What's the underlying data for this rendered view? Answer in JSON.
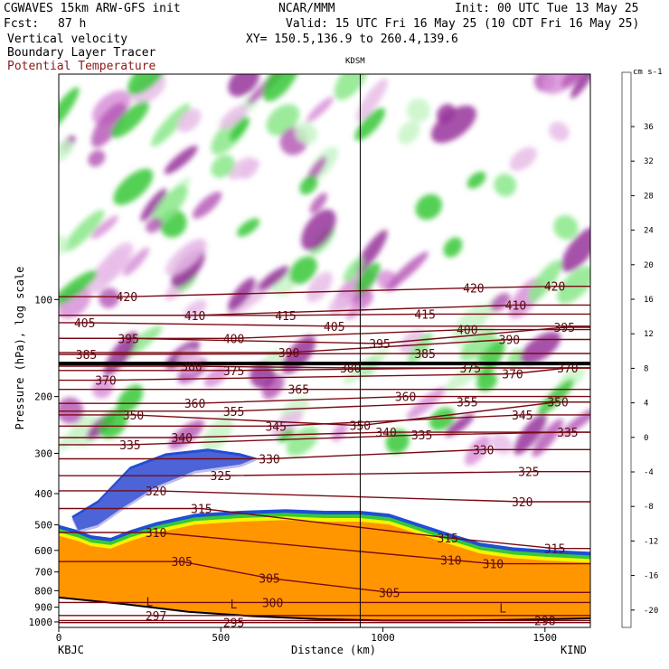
{
  "header": {
    "model": "CGWAVES 15km ARW-GFS init",
    "org": "NCAR/MMM",
    "init": "Init: 00 UTC Tue 13 May 25",
    "fcst_label": "Fcst:",
    "fcst_value": "87 h",
    "valid": "Valid: 15 UTC Fri 16 May 25 (10 CDT Fri 16 May 25)",
    "field1": "Vertical velocity",
    "field2": "Boundary Layer Tracer",
    "field3": "Potential Temperature",
    "xy": "XY= 150.5,136.9 to 260.4,139.6",
    "station_mid": "KDSM",
    "station_left": "KBJC",
    "station_right": "KIND"
  },
  "colors": {
    "theta": "#7a0a14",
    "tracer": "#1f4fd6",
    "title_red": "#8b1a1a"
  },
  "colorbar": {
    "unit": "cm s-1",
    "labels": [
      "36",
      "32",
      "28",
      "24",
      "20",
      "16",
      "12",
      "8",
      "4",
      "0",
      "-4",
      "-8",
      "-12",
      "-16",
      "-20"
    ],
    "colors": [
      "#ff0000",
      "#ff3a00",
      "#ff6a00",
      "#ff9600",
      "#ffb800",
      "#ffde00",
      "#f4f400",
      "#b6ee2a",
      "#5ee05e",
      "#36c836",
      "#8ae88a",
      "#c8f4c8",
      "#ffffff",
      "#ffffff",
      "#e8bde8",
      "#d890d8",
      "#b75cb7",
      "#96329b",
      "#78207e",
      "#6a3aa8",
      "#7a7ad8",
      "#8c8ce8"
    ]
  },
  "chart_data": {
    "type": "contour",
    "title": "Vertical velocity / Boundary Layer Tracer / Potential Temperature",
    "xlabel": "Distance (km)",
    "ylabel": "Pressure (hPa), log scale",
    "xlim": [
      0,
      1640
    ],
    "ylim": [
      1040,
      20
    ],
    "x_ticks": [
      0,
      500,
      1000,
      1500
    ],
    "y_ticks": [
      100,
      200,
      300,
      400,
      500,
      600,
      700,
      800,
      900,
      1000
    ],
    "station_marker_km": 930,
    "theta_labels": [
      {
        "v": "420",
        "x": 210,
        "p": 98
      },
      {
        "v": "420",
        "x": 1280,
        "p": 92
      },
      {
        "v": "420",
        "x": 1530,
        "p": 91
      },
      {
        "v": "410",
        "x": 420,
        "p": 112
      },
      {
        "v": "410",
        "x": 1410,
        "p": 104
      },
      {
        "v": "415",
        "x": 700,
        "p": 112
      },
      {
        "v": "415",
        "x": 1130,
        "p": 111
      },
      {
        "v": "405",
        "x": 80,
        "p": 118
      },
      {
        "v": "405",
        "x": 850,
        "p": 121
      },
      {
        "v": "400",
        "x": 540,
        "p": 132
      },
      {
        "v": "400",
        "x": 1260,
        "p": 124
      },
      {
        "v": "395",
        "x": 215,
        "p": 132
      },
      {
        "v": "395",
        "x": 990,
        "p": 137
      },
      {
        "v": "395",
        "x": 1560,
        "p": 122
      },
      {
        "v": "390",
        "x": 710,
        "p": 146
      },
      {
        "v": "390",
        "x": 1390,
        "p": 133
      },
      {
        "v": "385",
        "x": 85,
        "p": 148
      },
      {
        "v": "385",
        "x": 1130,
        "p": 147
      },
      {
        "v": "380",
        "x": 410,
        "p": 161
      },
      {
        "v": "380",
        "x": 900,
        "p": 163
      },
      {
        "v": "375",
        "x": 540,
        "p": 166
      },
      {
        "v": "375",
        "x": 1270,
        "p": 163
      },
      {
        "v": "370",
        "x": 1570,
        "p": 163
      },
      {
        "v": "370",
        "x": 145,
        "p": 178
      },
      {
        "v": "370",
        "x": 1400,
        "p": 170
      },
      {
        "v": "365",
        "x": 740,
        "p": 190
      },
      {
        "v": "360",
        "x": 420,
        "p": 210
      },
      {
        "v": "360",
        "x": 1070,
        "p": 200
      },
      {
        "v": "355",
        "x": 540,
        "p": 222
      },
      {
        "v": "355",
        "x": 1260,
        "p": 208
      },
      {
        "v": "350",
        "x": 230,
        "p": 228
      },
      {
        "v": "350",
        "x": 930,
        "p": 246
      },
      {
        "v": "350",
        "x": 1540,
        "p": 208
      },
      {
        "v": "345",
        "x": 670,
        "p": 247
      },
      {
        "v": "345",
        "x": 1430,
        "p": 228
      },
      {
        "v": "340",
        "x": 380,
        "p": 268
      },
      {
        "v": "340",
        "x": 1010,
        "p": 258
      },
      {
        "v": "335",
        "x": 220,
        "p": 282
      },
      {
        "v": "335",
        "x": 1120,
        "p": 263
      },
      {
        "v": "335",
        "x": 1570,
        "p": 258
      },
      {
        "v": "330",
        "x": 650,
        "p": 312
      },
      {
        "v": "330",
        "x": 1310,
        "p": 292
      },
      {
        "v": "325",
        "x": 500,
        "p": 352
      },
      {
        "v": "325",
        "x": 1450,
        "p": 342
      },
      {
        "v": "320",
        "x": 300,
        "p": 392
      },
      {
        "v": "320",
        "x": 1430,
        "p": 424
      },
      {
        "v": "315",
        "x": 440,
        "p": 445
      },
      {
        "v": "315",
        "x": 1200,
        "p": 548
      },
      {
        "v": "315",
        "x": 1530,
        "p": 592
      },
      {
        "v": "310",
        "x": 300,
        "p": 528
      },
      {
        "v": "310",
        "x": 1210,
        "p": 642
      },
      {
        "v": "310",
        "x": 1340,
        "p": 660
      },
      {
        "v": "305",
        "x": 380,
        "p": 650
      },
      {
        "v": "305",
        "x": 650,
        "p": 732
      },
      {
        "v": "305",
        "x": 1020,
        "p": 810
      },
      {
        "v": "300",
        "x": 660,
        "p": 870
      },
      {
        "v": "297",
        "x": 300,
        "p": 955
      },
      {
        "v": "295",
        "x": 540,
        "p": 1005
      },
      {
        "v": "298",
        "x": 1500,
        "p": 990
      }
    ],
    "low_markers": [
      {
        "x": 280,
        "p": 865
      },
      {
        "x": 540,
        "p": 880
      },
      {
        "x": 1370,
        "p": 905
      }
    ],
    "colorbar_units": "cm s-1"
  }
}
